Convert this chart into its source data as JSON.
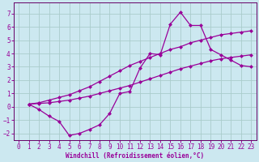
{
  "xlabel": "Windchill (Refroidissement éolien,°C)",
  "background_color": "#cce8f0",
  "grid_color": "#aacccc",
  "line_color": "#990099",
  "spine_color": "#660066",
  "xlim": [
    -0.5,
    23.5
  ],
  "ylim": [
    -2.5,
    7.8
  ],
  "xticks": [
    0,
    1,
    2,
    3,
    4,
    5,
    6,
    7,
    8,
    9,
    10,
    11,
    12,
    13,
    14,
    15,
    16,
    17,
    18,
    19,
    20,
    21,
    22,
    23
  ],
  "yticks": [
    -2,
    -1,
    0,
    1,
    2,
    3,
    4,
    5,
    6,
    7
  ],
  "line1_x": [
    1,
    2,
    3,
    4,
    5,
    6,
    7,
    8,
    9,
    10,
    11,
    12,
    13,
    14,
    15,
    16,
    17,
    18,
    19,
    20,
    21,
    22,
    23
  ],
  "line1_y": [
    0.2,
    0.25,
    0.3,
    0.4,
    0.5,
    0.65,
    0.8,
    1.0,
    1.2,
    1.4,
    1.6,
    1.85,
    2.1,
    2.35,
    2.6,
    2.85,
    3.05,
    3.25,
    3.45,
    3.6,
    3.7,
    3.8,
    3.9
  ],
  "line2_x": [
    1,
    2,
    3,
    4,
    5,
    6,
    7,
    8,
    9,
    10,
    11,
    12,
    13,
    14,
    15,
    16,
    17,
    18,
    19,
    20,
    21,
    22,
    23
  ],
  "line2_y": [
    0.2,
    0.3,
    0.5,
    0.7,
    0.9,
    1.2,
    1.5,
    1.9,
    2.3,
    2.7,
    3.1,
    3.4,
    3.7,
    4.0,
    4.3,
    4.5,
    4.8,
    5.0,
    5.2,
    5.4,
    5.5,
    5.6,
    5.7
  ],
  "line3_x": [
    1,
    2,
    3,
    4,
    5,
    6,
    7,
    8,
    9,
    10,
    11,
    12,
    13,
    14,
    15,
    16,
    17,
    18,
    19,
    20,
    21,
    22,
    23
  ],
  "line3_y": [
    0.2,
    -0.2,
    -0.7,
    -1.1,
    -2.15,
    -2.0,
    -1.7,
    -1.35,
    -0.5,
    1.0,
    1.15,
    2.9,
    4.0,
    3.9,
    6.2,
    7.1,
    6.1,
    6.1,
    4.3,
    3.9,
    3.5,
    3.1,
    3.0
  ],
  "marker": "D",
  "markersize": 2.5,
  "linewidth": 0.9,
  "tick_fontsize": 5.5,
  "label_fontsize": 5.5
}
